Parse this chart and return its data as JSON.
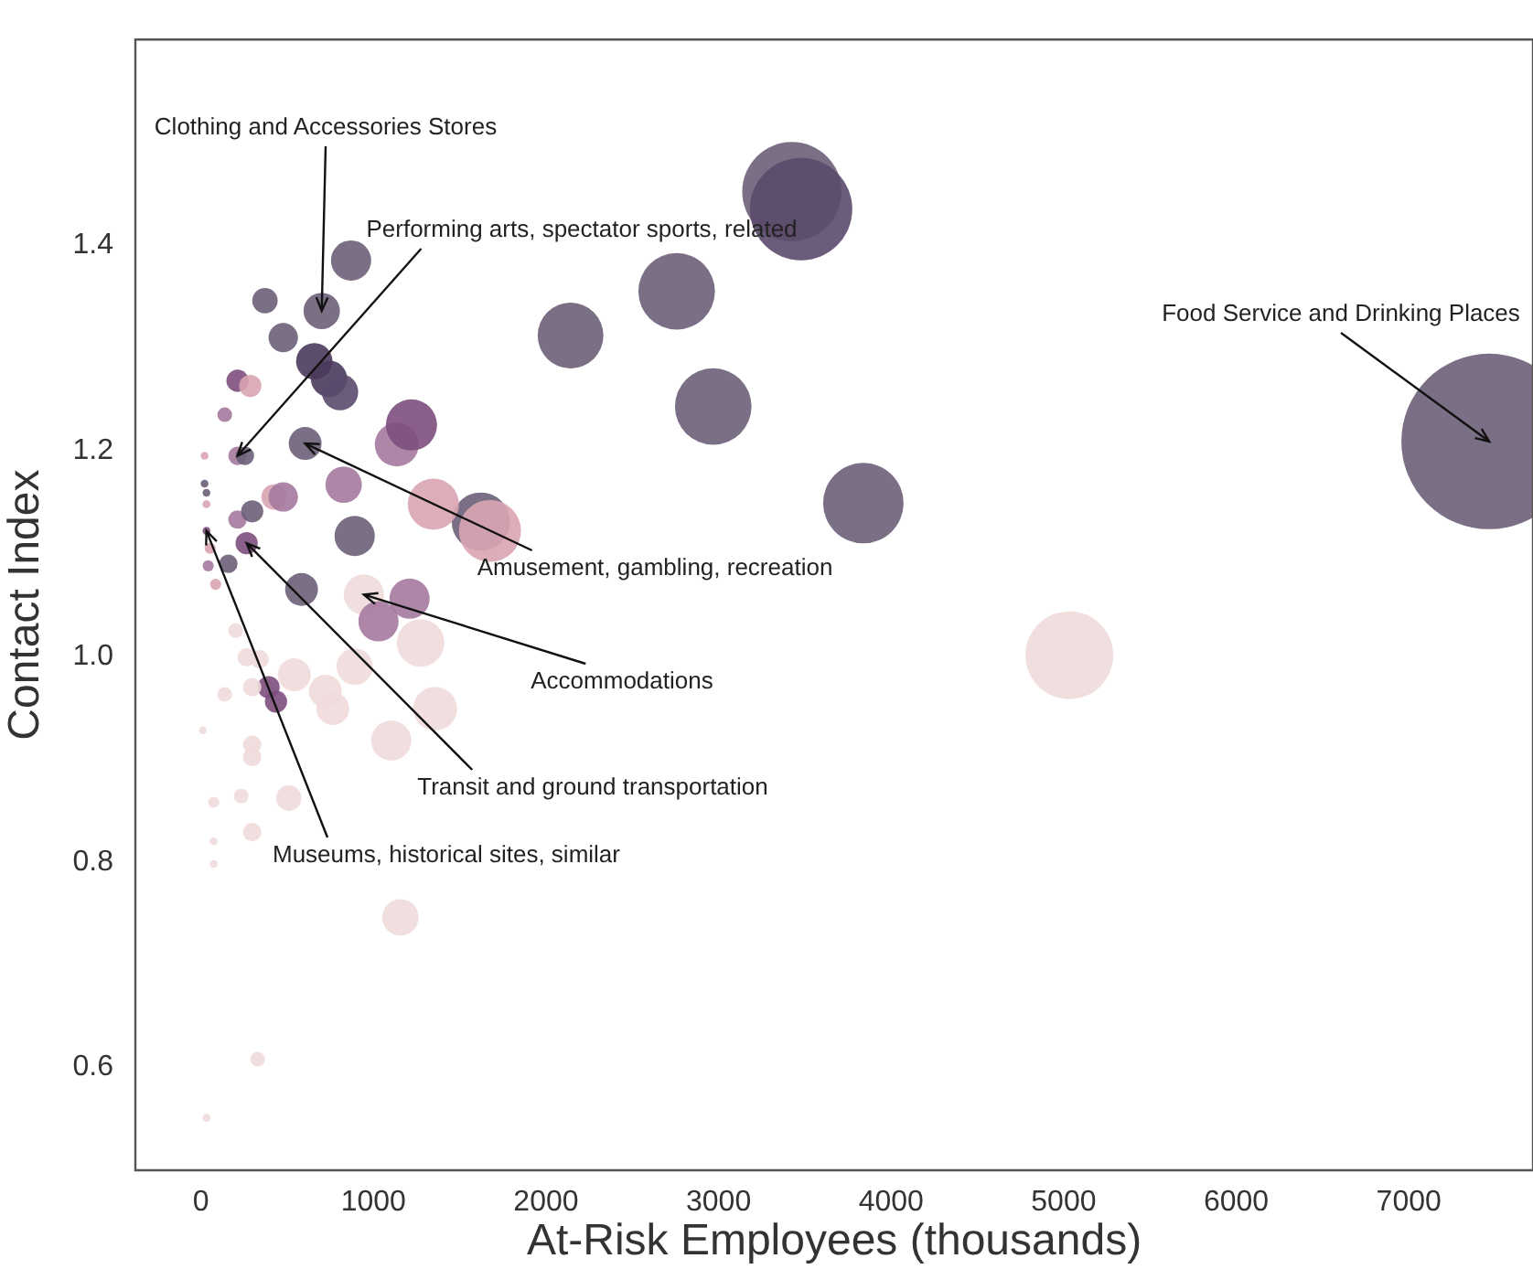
{
  "chart_data": {
    "type": "bubble",
    "xlabel": "At-Risk Employees (thousands)",
    "ylabel": "Contact Index",
    "xlim": [
      -380,
      7720
    ],
    "xticks": [
      0,
      1000,
      2000,
      3000,
      4000,
      5000,
      6000,
      7000
    ],
    "ylim": [
      0.5,
      1.6
    ],
    "yticks": [
      0.6,
      0.8,
      {
        "value": 1.0,
        "label": "1.0"
      },
      1.2,
      1.4
    ],
    "x": [
      7466,
      5033,
      3839,
      2969,
      2757,
      2142,
      3425,
      3478,
      1622,
      1675,
      1347,
      1135,
      1220,
      827,
      891,
      604,
      870,
      371,
      700,
      477,
      657,
      742,
      806,
      212,
      286,
      138,
      212,
      255,
      21,
      21,
      32,
      32,
      212,
      297,
      424,
      477,
      265,
      32,
      42,
      159,
      85,
      53,
      583,
      944,
      1029,
      1209,
      1273,
      201,
      265,
      339,
      541,
      392,
      435,
      297,
      138,
      721,
      764,
      891,
      1357,
      1103,
      11,
      297,
      297,
      74,
      233,
      509,
      74,
      297,
      74,
      1156,
      329,
      32
    ],
    "values": [
      1.209,
      1.001,
      1.149,
      1.243,
      1.355,
      1.312,
      1.452,
      1.435,
      1.131,
      1.122,
      1.148,
      1.206,
      1.225,
      1.167,
      1.117,
      1.207,
      1.385,
      1.346,
      1.336,
      1.31,
      1.287,
      1.27,
      1.257,
      1.268,
      1.263,
      1.235,
      1.195,
      1.195,
      1.195,
      1.168,
      1.159,
      1.148,
      1.133,
      1.141,
      1.155,
      1.155,
      1.11,
      1.122,
      1.088,
      1.09,
      1.07,
      1.105,
      1.065,
      1.06,
      1.034,
      1.056,
      1.013,
      1.025,
      0.999,
      0.997,
      0.982,
      0.97,
      0.956,
      0.97,
      0.963,
      0.966,
      0.949,
      0.99,
      0.949,
      0.918,
      0.928,
      0.914,
      0.902,
      0.858,
      0.864,
      0.862,
      0.82,
      0.829,
      0.798,
      0.746,
      0.608,
      0.551
    ],
    "sizes": [
      1,
      0.25,
      0.21,
      0.19,
      0.19,
      0.14,
      0.32,
      0.34,
      0.11,
      0.125,
      0.085,
      0.0625,
      0.085,
      0.043,
      0.0525,
      0.035,
      0.0525,
      0.021,
      0.043,
      0.028,
      0.043,
      0.043,
      0.043,
      0.016,
      0.016,
      0.007,
      0.011,
      0.011,
      0.002,
      0.002,
      0.002,
      0.002,
      0.011,
      0.016,
      0.021,
      0.028,
      0.016,
      0.002,
      0.004,
      0.011,
      0.004,
      0.004,
      0.035,
      0.0525,
      0.0525,
      0.0525,
      0.073,
      0.007,
      0.011,
      0.011,
      0.035,
      0.016,
      0.016,
      0.011,
      0.007,
      0.035,
      0.035,
      0.043,
      0.0625,
      0.0525,
      0.002,
      0.011,
      0.011,
      0.004,
      0.007,
      0.021,
      0.002,
      0.011,
      0.002,
      0.043,
      0.007,
      0.002
    ],
    "colors": [
      "#6b5f78",
      "#f0dcdc",
      "#6b5f78",
      "#6b5f78",
      "#6b5f78",
      "#6b5f78",
      "#6b5f78",
      "#5a4a6c",
      "#6b5f78",
      "#d9a5b3",
      "#d9a5b3",
      "#a57a9f",
      "#7d4f7d",
      "#a57a9f",
      "#6b5f78",
      "#6b5f78",
      "#6b5f78",
      "#6b5f78",
      "#6b5f78",
      "#6b5f78",
      "#4a3a5c",
      "#4a3a5c",
      "#5a4a6c",
      "#7d4f7d",
      "#d9a5b3",
      "#a57a9f",
      "#a57a9f",
      "#6b5f78",
      "#d9a5b3",
      "#6b5f78",
      "#6b5f78",
      "#d9a5b3",
      "#a57a9f",
      "#6b5f78",
      "#d9a5b3",
      "#a57a9f",
      "#7d4f7d",
      "#7d4f7d",
      "#a57a9f",
      "#6b5f78",
      "#d9a5b3",
      "#d9a5b3",
      "#6b5f78",
      "#f0dcdc",
      "#a57a9f",
      "#a57a9f",
      "#f0dcdc",
      "#f0dcdc",
      "#f0dcdc",
      "#f0dcdc",
      "#f0dcdc",
      "#7d4f7d",
      "#7d4f7d",
      "#f0dcdc",
      "#f0dcdc",
      "#f0dcdc",
      "#f0dcdc",
      "#f0dcdc",
      "#f0dcdc",
      "#f0dcdc",
      "#f0dcdc",
      "#f0dcdc",
      "#f0dcdc",
      "#f0dcdc",
      "#f0dcdc",
      "#f0dcdc",
      "#f0dcdc",
      "#f0dcdc",
      "#f0dcdc",
      "#f0dcdc",
      "#f0dcdc",
      "#f0dcdc"
    ],
    "annotations": [
      {
        "text": "Clothing and Accessories Stores",
        "x": 700,
        "y": 1.336
      },
      {
        "text": "Performing arts, spectator sports, related",
        "x": 212,
        "y": 1.195
      },
      {
        "text": "Amusement, gambling, recreation",
        "x": 604,
        "y": 1.207
      },
      {
        "text": "Accommodations",
        "x": 944,
        "y": 1.06
      },
      {
        "text": "Transit and ground transportation",
        "x": 265,
        "y": 1.11
      },
      {
        "text": "Museums, historical sites, similar",
        "x": 32,
        "y": 1.122
      },
      {
        "text": "Food Service and Drinking Places",
        "x": 7466,
        "y": 1.209
      }
    ]
  }
}
